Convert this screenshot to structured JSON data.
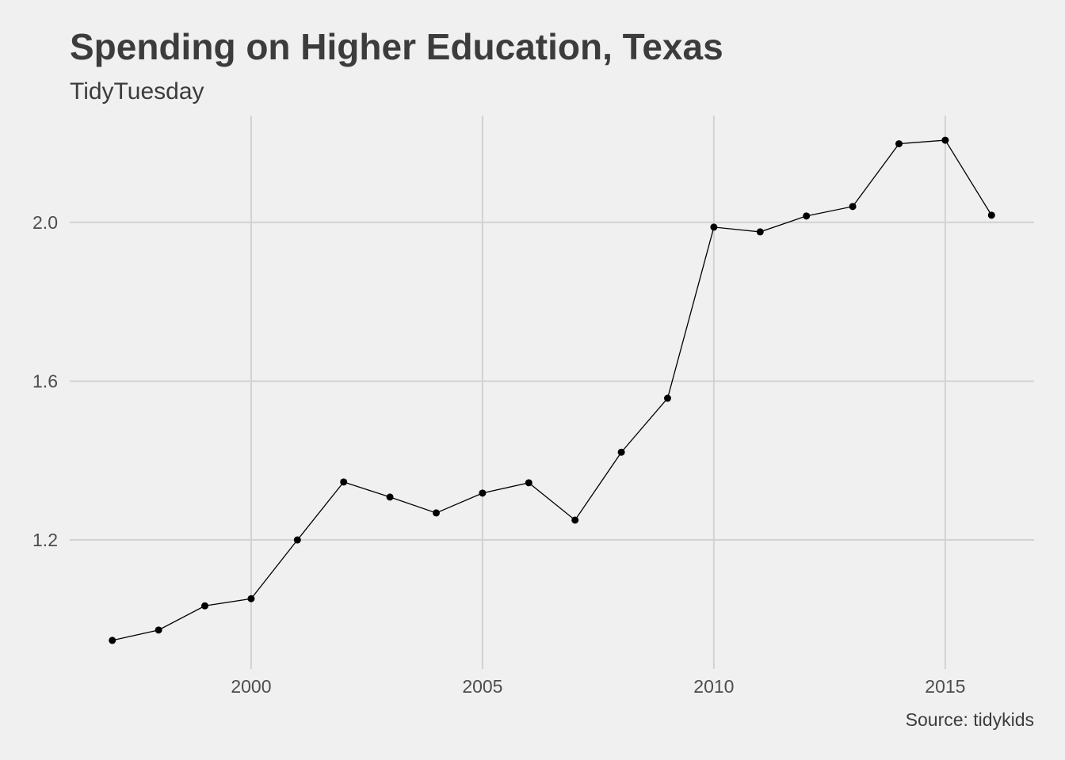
{
  "chart_data": {
    "type": "line",
    "title": "Spending on Higher Education, Texas",
    "subtitle": "TidyTuesday",
    "caption": "Source: tidykids",
    "xlabel": "",
    "ylabel": "",
    "x": [
      1997,
      1998,
      1999,
      2000,
      2001,
      2002,
      2003,
      2004,
      2005,
      2006,
      2007,
      2008,
      2009,
      2010,
      2011,
      2012,
      2013,
      2014,
      2015,
      2016
    ],
    "series": [
      {
        "name": "Texas",
        "values": [
          0.947,
          0.973,
          1.034,
          1.052,
          1.2,
          1.346,
          1.308,
          1.268,
          1.318,
          1.344,
          1.25,
          1.421,
          1.557,
          1.988,
          1.976,
          2.016,
          2.04,
          2.198,
          2.207,
          2.018
        ]
      }
    ],
    "xlim": [
      1996.08,
      2016.92
    ],
    "ylim": [
      0.875,
      2.269
    ],
    "xticks": [
      2000,
      2005,
      2010,
      2015
    ],
    "xtick_labels": [
      "2000",
      "2005",
      "2010",
      "2015"
    ],
    "yticks": [
      1.2,
      1.6,
      2.0
    ],
    "ytick_labels": [
      "1.2",
      "1.6",
      "2.0"
    ],
    "grid": true,
    "legend": "none",
    "colors": {
      "background": "#f0f0f0",
      "grid": "#d2d2d2",
      "line": "#000000",
      "text": "#3c3c3c"
    }
  }
}
